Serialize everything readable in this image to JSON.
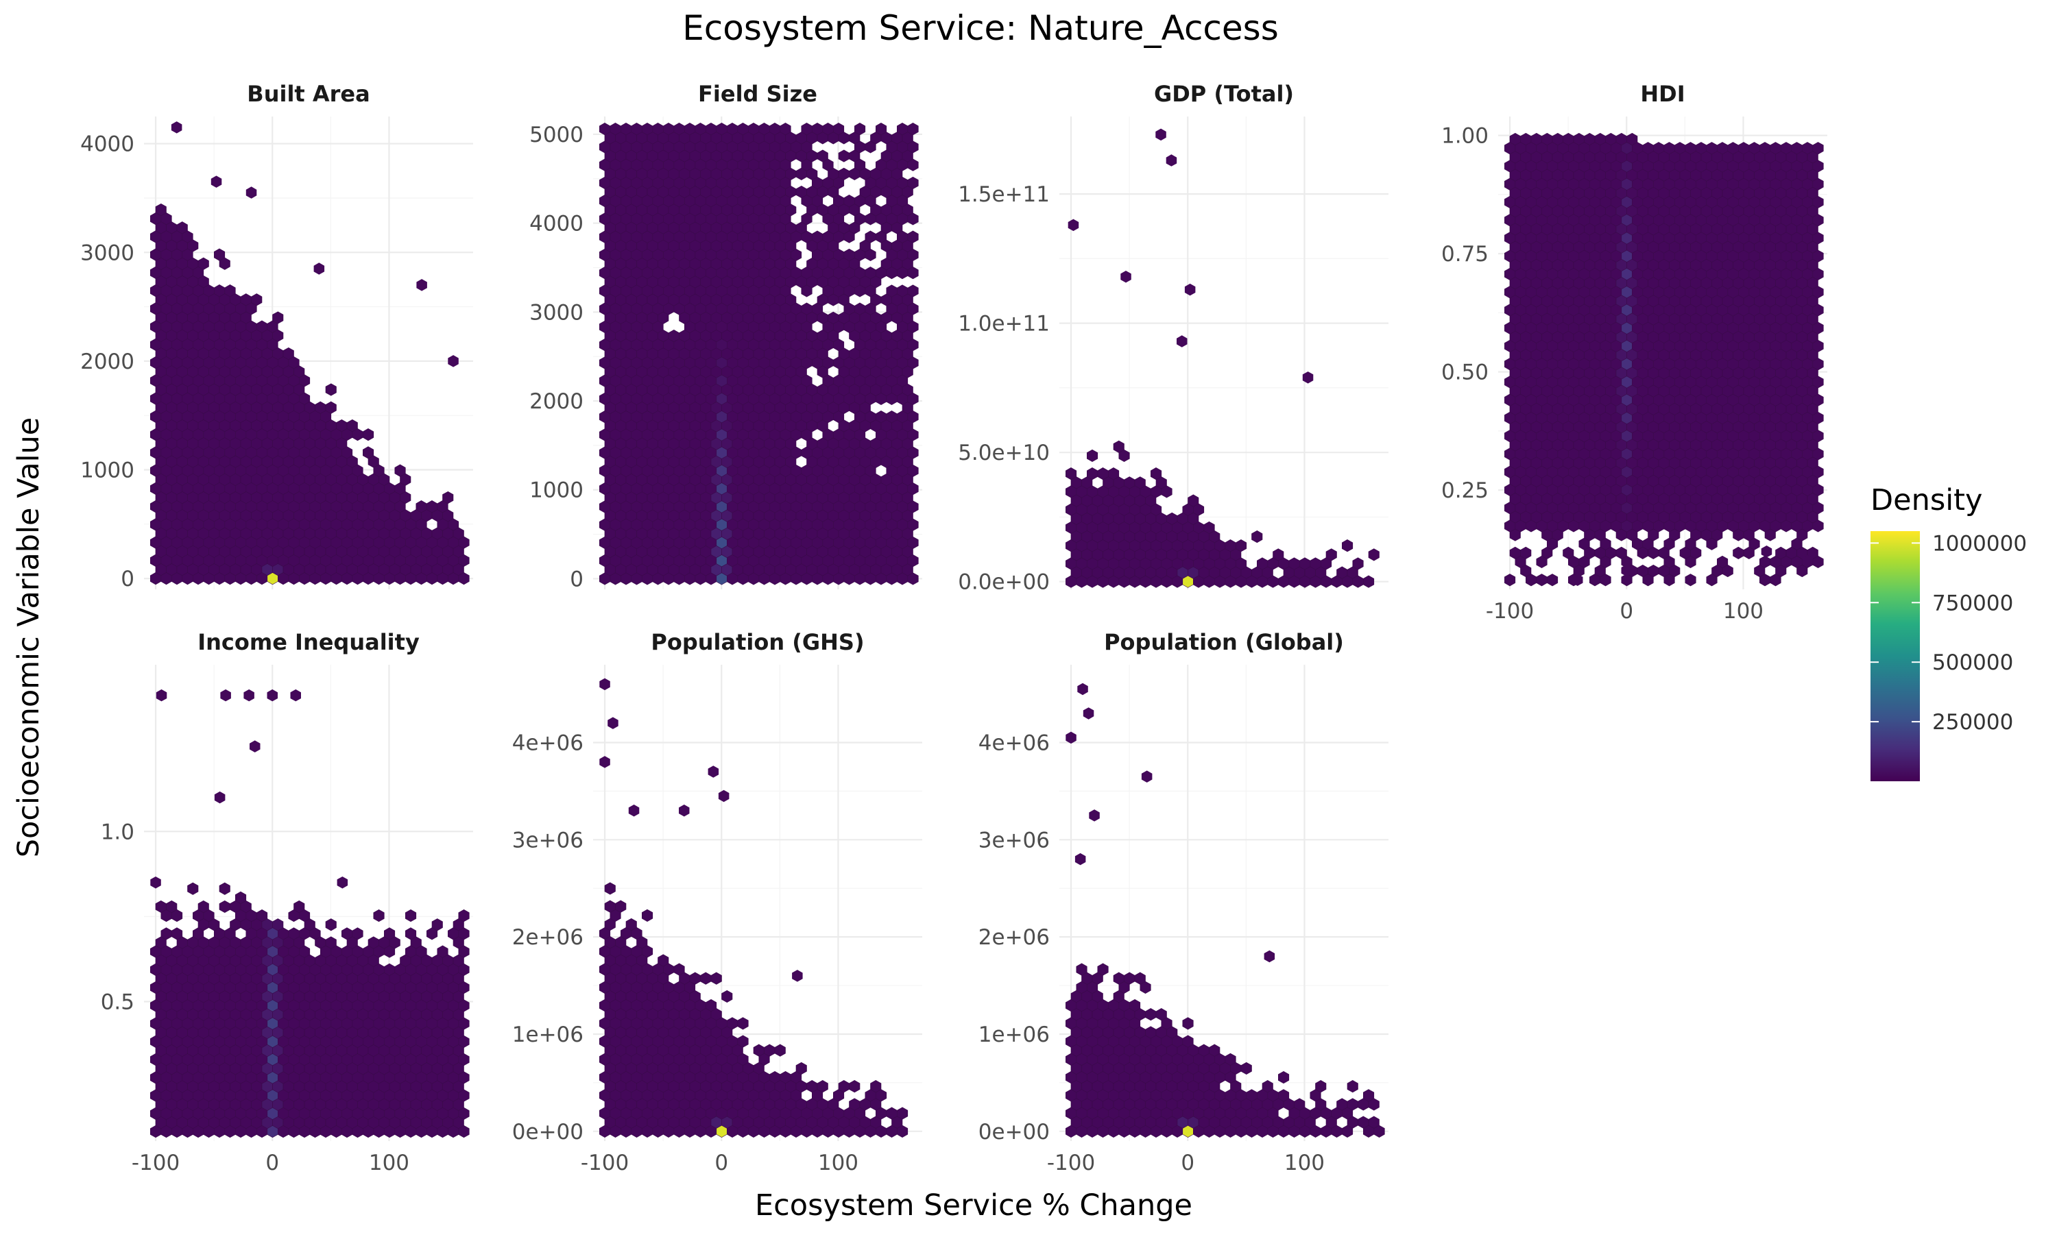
{
  "chart_data": {
    "type": "heatmap",
    "subtype": "hexbin-faceted",
    "title": "Ecosystem Service: Nature_Access",
    "xlabel": "Ecosystem Service % Change",
    "ylabel": "Socioeconomic Variable Value",
    "grid": true,
    "legend": {
      "title": "Density",
      "placement": "right",
      "colormap": "viridis",
      "range": [
        0,
        1050000
      ],
      "ticks": [
        250000,
        500000,
        750000,
        1000000
      ],
      "tick_labels": [
        "250000",
        "500000",
        "750000",
        "1000000"
      ]
    },
    "x_ticks": [
      -100,
      0,
      100
    ],
    "x_tick_labels": [
      "-100",
      "0",
      "100"
    ],
    "xlim": [
      -110,
      172
    ],
    "colors": {
      "low": "#440154",
      "mid": "#21908c",
      "high": "#fde725"
    },
    "panels": [
      {
        "name": "Built Area",
        "ylim": [
          -100,
          4250
        ],
        "y_ticks": [
          0,
          1000,
          2000,
          3000,
          4000
        ],
        "y_tick_labels": [
          "0",
          "1000",
          "2000",
          "3000",
          "4000"
        ],
        "hot_spots": [
          {
            "x": 0,
            "y": 0,
            "density": 1000000
          }
        ],
        "shape": "triangular",
        "top_at_x": [
          [
            -100,
            3500
          ],
          [
            -50,
            2900
          ],
          [
            0,
            2400
          ],
          [
            50,
            1500
          ],
          [
            100,
            1000
          ],
          [
            165,
            400
          ]
        ],
        "outliers": [
          [
            -82,
            4150
          ],
          [
            -48,
            3650
          ],
          [
            -18,
            3550
          ],
          [
            128,
            2700
          ],
          [
            155,
            2000
          ],
          [
            40,
            2850
          ]
        ]
      },
      {
        "name": "Field Size",
        "ylim": [
          -120,
          5200
        ],
        "y_ticks": [
          0,
          1000,
          2000,
          3000,
          4000,
          5000
        ],
        "y_tick_labels": [
          "0",
          "1000",
          "2000",
          "3000",
          "4000",
          "5000"
        ],
        "hot_spots": [
          {
            "x": 0,
            "y": 0,
            "density": 250000
          }
        ],
        "shape": "full",
        "top_at_x": [
          [
            -100,
            5100
          ],
          [
            165,
            5100
          ]
        ],
        "outliers": [],
        "holes": [
          [
            -40,
            2900
          ]
        ]
      },
      {
        "name": "GDP (Total)",
        "ylim": [
          -3000000000,
          180000000000
        ],
        "y_ticks": [
          0,
          50000000000,
          100000000000,
          150000000000
        ],
        "y_tick_labels": [
          "0.0e+00",
          "5.0e+10",
          "1.0e+11",
          "1.5e+11"
        ],
        "hot_spots": [
          {
            "x": 0,
            "y": 0,
            "density": 1000000
          }
        ],
        "shape": "skewed",
        "top_at_x": [
          [
            -100,
            40000000000
          ],
          [
            -50,
            45000000000
          ],
          [
            0,
            30000000000
          ],
          [
            50,
            12000000000
          ],
          [
            100,
            8000000000
          ],
          [
            165,
            3000000000
          ]
        ],
        "outliers": [
          [
            -98,
            138000000000
          ],
          [
            -23,
            173000000000
          ],
          [
            -14,
            163000000000
          ],
          [
            -53,
            118000000000
          ],
          [
            2,
            113000000000
          ],
          [
            -5,
            93000000000
          ],
          [
            103,
            79000000000
          ]
        ]
      },
      {
        "name": "HDI",
        "ylim": [
          0.04,
          1.04
        ],
        "y_ticks": [
          0.25,
          0.5,
          0.75,
          1.0
        ],
        "y_tick_labels": [
          "0.25",
          "0.50",
          "0.75",
          "1.00"
        ],
        "hot_spots": [
          {
            "x": 0,
            "y": 0.6,
            "density": 150000
          }
        ],
        "shape": "full",
        "top_at_x": [
          [
            -100,
            1.0
          ],
          [
            165,
            0.98
          ]
        ],
        "outliers": [
          [
            -42,
            0.06
          ],
          [
            0,
            0.08
          ],
          [
            155,
            0.1
          ],
          [
            120,
            0.12
          ]
        ]
      },
      {
        "name": "Income Inequality",
        "ylim": [
          0.09,
          1.49
        ],
        "y_ticks": [
          0.5,
          1.0
        ],
        "y_tick_labels": [
          "0.5",
          "1.0"
        ],
        "hot_spots": [
          {
            "x": 0,
            "y": 0.4,
            "density": 200000
          }
        ],
        "shape": "band",
        "top_at_x": [
          [
            -100,
            0.72
          ],
          [
            -50,
            0.78
          ],
          [
            0,
            0.75
          ],
          [
            50,
            0.7
          ],
          [
            100,
            0.68
          ],
          [
            165,
            0.7
          ]
        ],
        "outliers": [
          [
            -95,
            1.4
          ],
          [
            -40,
            1.4
          ],
          [
            -20,
            1.4
          ],
          [
            0,
            1.4
          ],
          [
            20,
            1.4
          ],
          [
            -45,
            1.1
          ],
          [
            -15,
            1.25
          ],
          [
            60,
            0.85
          ],
          [
            -100,
            0.85
          ]
        ]
      },
      {
        "name": "Population (GHS)",
        "ylim": [
          -100000,
          4800000
        ],
        "y_ticks": [
          0,
          1000000,
          2000000,
          3000000,
          4000000
        ],
        "y_tick_labels": [
          "0e+00",
          "1e+06",
          "2e+06",
          "3e+06",
          "4e+06"
        ],
        "hot_spots": [
          {
            "x": 0,
            "y": 0,
            "density": 1000000
          }
        ],
        "shape": "triangular",
        "top_at_x": [
          [
            -100,
            2300000
          ],
          [
            -50,
            1900000
          ],
          [
            0,
            1300000
          ],
          [
            50,
            700000
          ],
          [
            100,
            400000
          ],
          [
            165,
            150000
          ]
        ],
        "outliers": [
          [
            -100,
            4600000
          ],
          [
            -93,
            4200000
          ],
          [
            -100,
            3800000
          ],
          [
            -7,
            3700000
          ],
          [
            2,
            3450000
          ],
          [
            -32,
            3300000
          ],
          [
            -75,
            3300000
          ],
          [
            65,
            1600000
          ]
        ]
      },
      {
        "name": "Population (Global)",
        "ylim": [
          -100000,
          4800000
        ],
        "y_ticks": [
          0,
          1000000,
          2000000,
          3000000,
          4000000
        ],
        "y_tick_labels": [
          "0e+00",
          "1e+06",
          "2e+06",
          "3e+06",
          "4e+06"
        ],
        "hot_spots": [
          {
            "x": 0,
            "y": 0,
            "density": 1000000
          }
        ],
        "shape": "triangular",
        "top_at_x": [
          [
            -100,
            1700000
          ],
          [
            -50,
            1500000
          ],
          [
            0,
            1000000
          ],
          [
            50,
            500000
          ],
          [
            100,
            300000
          ],
          [
            165,
            150000
          ]
        ],
        "outliers": [
          [
            -90,
            4550000
          ],
          [
            -85,
            4300000
          ],
          [
            -100,
            4050000
          ],
          [
            -35,
            3650000
          ],
          [
            -80,
            3250000
          ],
          [
            -92,
            2800000
          ],
          [
            70,
            1800000
          ]
        ]
      }
    ]
  }
}
